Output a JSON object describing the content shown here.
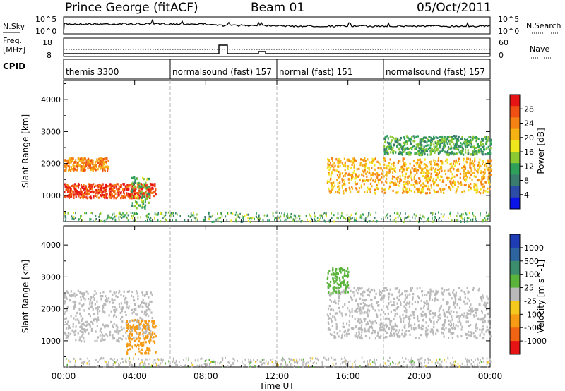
{
  "header": {
    "station": "Prince George (fitACF)",
    "beam": "Beam 01",
    "date": "05/Oct/2011"
  },
  "summary_panels": {
    "nsky": {
      "left_label": "N.Sky",
      "right_label": "N.Search",
      "left_ticks": [
        "10^5",
        "10^0"
      ],
      "right_ticks": [
        "10^5",
        "10^0"
      ]
    },
    "freq": {
      "left_label_1": "Freq.",
      "left_label_2": "[MHz]",
      "right_label": "Nave",
      "left_ticks": [
        "18",
        "8"
      ],
      "right_ticks": [
        "60",
        "0"
      ]
    },
    "cpid": {
      "label": "CPID",
      "segments": [
        {
          "name": "themis 3300",
          "start_hour": 0,
          "end_hour": 6
        },
        {
          "name": "normalsound (fast) 157",
          "start_hour": 6,
          "end_hour": 12
        },
        {
          "name": "normal (fast) 151",
          "start_hour": 12,
          "end_hour": 18
        },
        {
          "name": "normalsound (fast) 157",
          "start_hour": 18,
          "end_hour": 24
        }
      ]
    }
  },
  "axis": {
    "x_label": "Time UT",
    "x_tick_labels": [
      "00:00",
      "04:00",
      "08:00",
      "12:00",
      "16:00",
      "20:00",
      "00:00"
    ],
    "y_label": "Slant Range [km]",
    "y_tick_labels": [
      "1000",
      "2000",
      "3000",
      "4000"
    ]
  },
  "colorbars": {
    "power": {
      "label": "Power [dB]",
      "tick_labels": [
        "4",
        "8",
        "12",
        "16",
        "20",
        "24",
        "28"
      ],
      "colors": [
        "#0a14e6",
        "#2d4ca8",
        "#3a7d6e",
        "#2fa05a",
        "#8cc832",
        "#f0e61e",
        "#f5b414",
        "#f58214",
        "#f05014",
        "#e61414"
      ]
    },
    "velocity": {
      "label": "Velocity [m s^-1]",
      "tick_labels": [
        "1000",
        "500",
        "100",
        "25",
        "-25",
        "-100",
        "-500",
        "-1000"
      ],
      "colors": [
        "#1e3cb4",
        "#2d64a0",
        "#3c8c6e",
        "#5ab43c",
        "#b9b9b9",
        "#f5c81e",
        "#f59b14",
        "#f06414",
        "#e61414"
      ]
    }
  },
  "chart_data": [
    {
      "type": "heatmap",
      "name": "Power",
      "x_range_hours": [
        0,
        24
      ],
      "y_range_km": [
        180,
        4600
      ],
      "value_range_db": [
        0,
        30
      ],
      "regions": [
        {
          "t0": 0.0,
          "t1": 5.2,
          "r0": 950,
          "r1": 1400,
          "value": 26
        },
        {
          "t0": 0.0,
          "t1": 2.5,
          "r0": 1800,
          "r1": 2200,
          "value": 22
        },
        {
          "t0": 3.8,
          "t1": 4.8,
          "r0": 600,
          "r1": 1600,
          "value": 12
        },
        {
          "t0": 14.8,
          "t1": 24.0,
          "r0": 1100,
          "r1": 2200,
          "value": 20
        },
        {
          "t0": 18.0,
          "t1": 24.0,
          "r0": 2300,
          "r1": 2900,
          "value": 11
        }
      ]
    },
    {
      "type": "heatmap",
      "name": "Velocity",
      "x_range_hours": [
        0,
        24
      ],
      "y_range_km": [
        180,
        4600
      ],
      "value_range_ms": [
        -1000,
        1000
      ],
      "regions": [
        {
          "t0": 0.0,
          "t1": 5.0,
          "r0": 1000,
          "r1": 2600,
          "value": 0
        },
        {
          "t0": 3.5,
          "t1": 5.2,
          "r0": 600,
          "r1": 1700,
          "value": -200
        },
        {
          "t0": 14.8,
          "t1": 24.0,
          "r0": 1100,
          "r1": 2700,
          "value": 0
        },
        {
          "t0": 14.8,
          "t1": 16.0,
          "r0": 2500,
          "r1": 3300,
          "value": 80
        }
      ]
    }
  ]
}
